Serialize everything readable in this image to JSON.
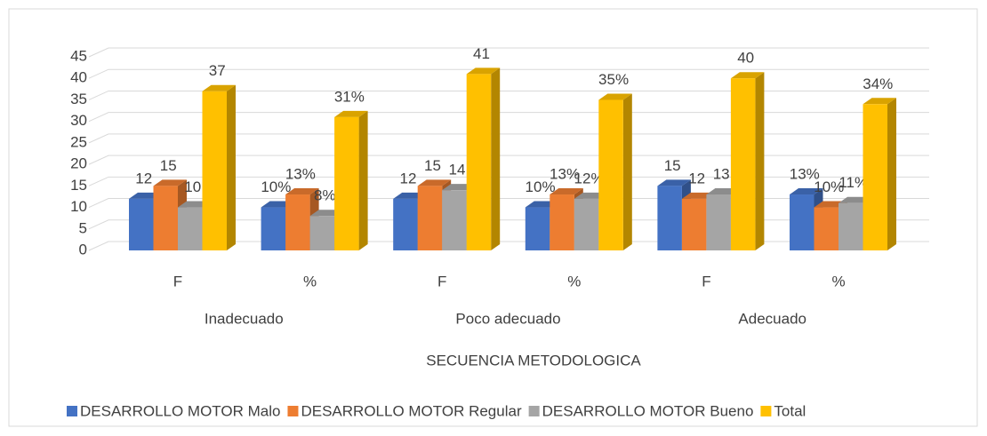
{
  "chart_data": {
    "type": "bar3d",
    "categories": [
      "F",
      "%",
      "F",
      "%",
      "F",
      "%"
    ],
    "category_groups": [
      "Inadecuado",
      "Poco adecuado",
      "Adecuado"
    ],
    "xlabel": "SECUENCIA METODOLOGICA",
    "ylim": [
      0,
      45
    ],
    "yticks": [
      0,
      5,
      10,
      15,
      20,
      25,
      30,
      35,
      40,
      45
    ],
    "grid": true,
    "legend": "bottom",
    "series": [
      {
        "name": "DESARROLLO MOTOR Malo",
        "color": "#4472c4",
        "values": [
          12,
          10,
          12,
          10,
          15,
          13
        ],
        "value_labels": [
          "12",
          "10%",
          "12",
          "10%",
          "15",
          "13%"
        ]
      },
      {
        "name": "DESARROLLO MOTOR Regular",
        "color": "#ed7d31",
        "values": [
          15,
          13,
          15,
          13,
          12,
          10
        ],
        "value_labels": [
          "15",
          "13%",
          "15",
          "13%",
          "12",
          "10%"
        ]
      },
      {
        "name": "DESARROLLO MOTOR Bueno",
        "color": "#a5a5a5",
        "values": [
          10,
          8,
          14,
          12,
          13,
          11
        ],
        "value_labels": [
          "10",
          "8%",
          "14",
          "12%",
          "13",
          "11%"
        ]
      },
      {
        "name": "Total",
        "color": "#ffc000",
        "values": [
          37,
          31,
          41,
          35,
          40,
          34
        ],
        "value_labels": [
          "37",
          "31%",
          "41",
          "35%",
          "40",
          "34%"
        ]
      }
    ]
  }
}
